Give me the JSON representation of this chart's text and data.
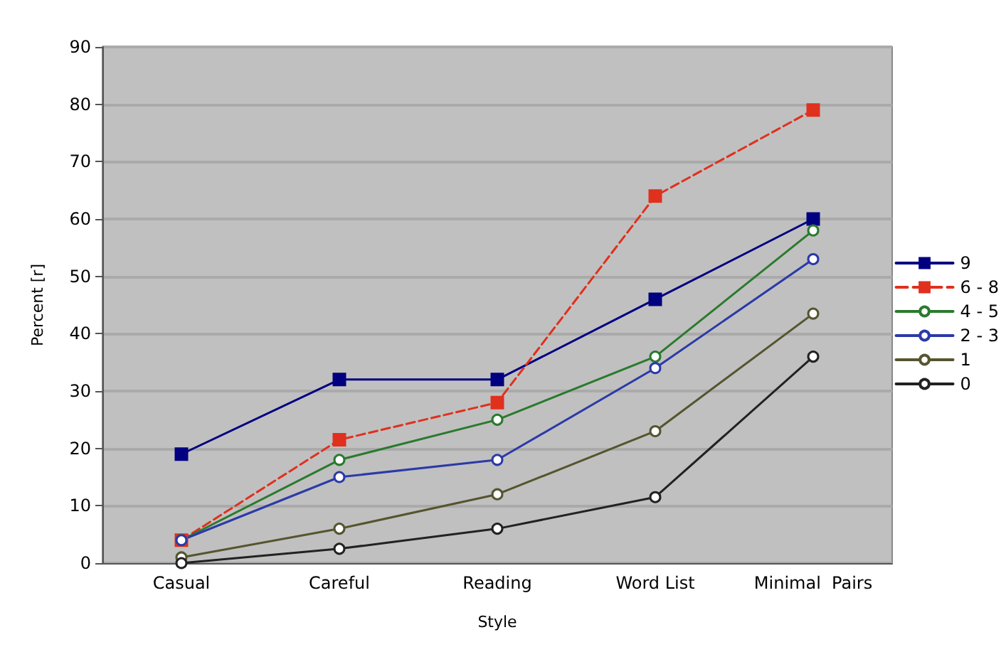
{
  "chart_data": {
    "type": "line",
    "xlabel": "Style",
    "ylabel": "Percent [r]",
    "categories": [
      "Casual",
      "Careful",
      "Reading",
      "Word List",
      "Minimal  Pairs"
    ],
    "ylim": [
      0,
      90
    ],
    "yticks": [
      0,
      10,
      20,
      30,
      40,
      50,
      60,
      70,
      80,
      90
    ],
    "grid": "y",
    "legend": "right",
    "series": [
      {
        "name": "9",
        "color": "#000080",
        "marker": "square",
        "line_style": "solid",
        "values": [
          19,
          32,
          32,
          46,
          60
        ]
      },
      {
        "name": "6 - 8",
        "color": "#e0301e",
        "marker": "square",
        "line_style": "dashed",
        "values": [
          4,
          21.5,
          28,
          64,
          79
        ]
      },
      {
        "name": "4 - 5",
        "color": "#2a7a2e",
        "marker": "circle",
        "line_style": "solid",
        "values": [
          4,
          18,
          25,
          36,
          58
        ]
      },
      {
        "name": "2 - 3",
        "color": "#2b3aa8",
        "marker": "circle",
        "line_style": "solid",
        "values": [
          4,
          15,
          18,
          34,
          53
        ]
      },
      {
        "name": "1",
        "color": "#55552f",
        "marker": "circle",
        "line_style": "solid",
        "values": [
          1,
          6,
          12,
          23,
          43.5
        ]
      },
      {
        "name": "0",
        "color": "#222222",
        "marker": "circle",
        "line_style": "solid",
        "values": [
          0,
          2.5,
          6,
          11.5,
          36
        ]
      }
    ]
  }
}
